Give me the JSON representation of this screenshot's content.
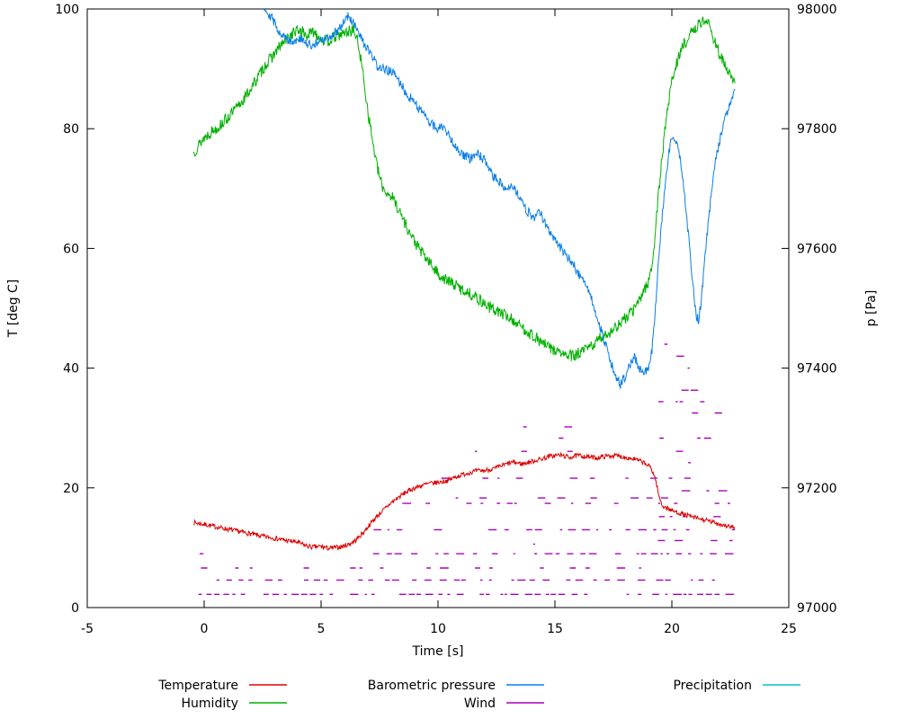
{
  "chart_data": {
    "type": "line",
    "title": "",
    "xlabel": "Time [s]",
    "ylabel_left": "T [deg C]",
    "ylabel_right": "p [Pa]",
    "xlim": [
      -5,
      25
    ],
    "xticks": [
      -5,
      0,
      5,
      10,
      15,
      20,
      25
    ],
    "ylim_left": [
      0,
      100
    ],
    "yticks_left": [
      0,
      20,
      40,
      60,
      80,
      100
    ],
    "ylim_right": [
      97000,
      98000
    ],
    "yticks_right": [
      97000,
      97200,
      97400,
      97600,
      97800,
      98000
    ],
    "grid": false,
    "legend_position": "bottom",
    "axis_color": "#000000",
    "series": [
      {
        "name": "Temperature",
        "axis": "left",
        "color": "#dd0000",
        "style": "noisy-line",
        "noise": 0.4,
        "points": [
          [
            -0.45,
            14.2
          ],
          [
            0,
            13.9
          ],
          [
            0.5,
            13.5
          ],
          [
            1,
            13.1
          ],
          [
            1.5,
            12.7
          ],
          [
            2,
            12.3
          ],
          [
            2.5,
            11.9
          ],
          [
            3,
            11.6
          ],
          [
            3.5,
            11.2
          ],
          [
            4,
            10.9
          ],
          [
            4.3,
            10.4
          ],
          [
            4.6,
            10.1
          ],
          [
            5,
            10.2
          ],
          [
            5.3,
            9.9
          ],
          [
            5.6,
            10
          ],
          [
            5.9,
            10.2
          ],
          [
            6.2,
            10.6
          ],
          [
            6.5,
            11.3
          ],
          [
            6.8,
            12.5
          ],
          [
            7.1,
            14
          ],
          [
            7.4,
            15.3
          ],
          [
            7.7,
            16.4
          ],
          [
            8,
            17.5
          ],
          [
            8.3,
            18.4
          ],
          [
            8.6,
            19.2
          ],
          [
            9,
            20
          ],
          [
            9.3,
            20.4
          ],
          [
            9.6,
            20.7
          ],
          [
            10,
            20.9
          ],
          [
            10.4,
            21.2
          ],
          [
            10.8,
            21.9
          ],
          [
            11.2,
            22.4
          ],
          [
            11.6,
            22.8
          ],
          [
            12,
            22.9
          ],
          [
            12.4,
            23.2
          ],
          [
            12.8,
            23.8
          ],
          [
            13.2,
            24.3
          ],
          [
            13.6,
            24
          ],
          [
            14,
            24.4
          ],
          [
            14.4,
            24.8
          ],
          [
            14.8,
            25.3
          ],
          [
            15.2,
            25.5
          ],
          [
            15.6,
            25.1
          ],
          [
            16,
            25.4
          ],
          [
            16.4,
            25.2
          ],
          [
            16.8,
            25
          ],
          [
            17.2,
            25.3
          ],
          [
            17.6,
            25.4
          ],
          [
            18,
            25.1
          ],
          [
            18.4,
            24.8
          ],
          [
            18.8,
            24.2
          ],
          [
            19.1,
            23.4
          ],
          [
            19.3,
            21.5
          ],
          [
            19.45,
            18.5
          ],
          [
            19.6,
            17
          ],
          [
            19.8,
            16.6
          ],
          [
            20,
            16.2
          ],
          [
            20.4,
            15.7
          ],
          [
            20.8,
            15.2
          ],
          [
            21.2,
            14.8
          ],
          [
            21.6,
            14.4
          ],
          [
            22,
            14
          ],
          [
            22.4,
            13.6
          ],
          [
            22.7,
            13.3
          ]
        ]
      },
      {
        "name": "Humidity",
        "axis": "left",
        "color": "#00b000",
        "style": "noisy-line",
        "noise": 1.0,
        "points": [
          [
            -0.45,
            76
          ],
          [
            -0.2,
            77.5
          ],
          [
            0,
            78.5
          ],
          [
            0.3,
            79.5
          ],
          [
            0.6,
            80.3
          ],
          [
            1,
            81.8
          ],
          [
            1.4,
            83.5
          ],
          [
            1.8,
            85.5
          ],
          [
            2.2,
            88
          ],
          [
            2.6,
            90.5
          ],
          [
            3,
            92.5
          ],
          [
            3.4,
            94.5
          ],
          [
            3.8,
            96
          ],
          [
            4.1,
            96.5
          ],
          [
            4.4,
            95.5
          ],
          [
            4.7,
            96.3
          ],
          [
            5,
            95
          ],
          [
            5.3,
            94.6
          ],
          [
            5.6,
            95.4
          ],
          [
            5.9,
            95.8
          ],
          [
            6.2,
            96.3
          ],
          [
            6.4,
            96.5
          ],
          [
            6.6,
            94
          ],
          [
            6.8,
            89
          ],
          [
            7,
            83
          ],
          [
            7.2,
            78
          ],
          [
            7.4,
            73.5
          ],
          [
            7.6,
            70.5
          ],
          [
            7.8,
            69.3
          ],
          [
            8,
            68.8
          ],
          [
            8.2,
            67.5
          ],
          [
            8.5,
            65
          ],
          [
            8.8,
            62.5
          ],
          [
            9.1,
            60.5
          ],
          [
            9.4,
            58.8
          ],
          [
            9.7,
            57.3
          ],
          [
            10,
            55.8
          ],
          [
            10.3,
            54.8
          ],
          [
            10.6,
            54.2
          ],
          [
            11,
            53.2
          ],
          [
            11.4,
            52.4
          ],
          [
            11.8,
            51.3
          ],
          [
            12.2,
            50.2
          ],
          [
            12.6,
            49.4
          ],
          [
            13,
            48.6
          ],
          [
            13.4,
            47.4
          ],
          [
            13.8,
            46.2
          ],
          [
            14.2,
            45
          ],
          [
            14.6,
            43.8
          ],
          [
            15,
            43
          ],
          [
            15.4,
            42.2
          ],
          [
            15.8,
            42
          ],
          [
            16.2,
            42.8
          ],
          [
            16.6,
            43.8
          ],
          [
            17,
            45.2
          ],
          [
            17.4,
            46.2
          ],
          [
            17.8,
            47.5
          ],
          [
            18.2,
            49
          ],
          [
            18.5,
            50.5
          ],
          [
            18.8,
            53
          ],
          [
            19,
            54.5
          ],
          [
            19.15,
            57
          ],
          [
            19.3,
            63
          ],
          [
            19.45,
            70
          ],
          [
            19.6,
            76
          ],
          [
            19.8,
            83
          ],
          [
            20,
            88
          ],
          [
            20.2,
            91
          ],
          [
            20.5,
            94
          ],
          [
            20.8,
            95.8
          ],
          [
            21.1,
            97.2
          ],
          [
            21.4,
            98.3
          ],
          [
            21.6,
            97.2
          ],
          [
            21.8,
            95
          ],
          [
            22,
            93
          ],
          [
            22.2,
            91
          ],
          [
            22.4,
            89.5
          ],
          [
            22.6,
            88.2
          ],
          [
            22.7,
            87.6
          ]
        ]
      },
      {
        "name": "Barometric pressure",
        "axis": "right",
        "color": "#0a7ee8",
        "style": "noisy-line",
        "noise": 8,
        "points": [
          [
            2.55,
            98005
          ],
          [
            2.7,
            97995
          ],
          [
            2.9,
            97985
          ],
          [
            3.1,
            97970
          ],
          [
            3.3,
            97958
          ],
          [
            3.5,
            97950
          ],
          [
            3.8,
            97946
          ],
          [
            4.1,
            97950
          ],
          [
            4.4,
            97941
          ],
          [
            4.7,
            97940
          ],
          [
            5,
            97946
          ],
          [
            5.3,
            97951
          ],
          [
            5.6,
            97960
          ],
          [
            5.9,
            97974
          ],
          [
            6.1,
            97988
          ],
          [
            6.3,
            97982
          ],
          [
            6.5,
            97966
          ],
          [
            6.8,
            97944
          ],
          [
            7.1,
            97925
          ],
          [
            7.4,
            97905
          ],
          [
            7.7,
            97898
          ],
          [
            8,
            97896
          ],
          [
            8.2,
            97888
          ],
          [
            8.5,
            97868
          ],
          [
            8.8,
            97852
          ],
          [
            9.1,
            97840
          ],
          [
            9.4,
            97822
          ],
          [
            9.7,
            97808
          ],
          [
            10,
            97800
          ],
          [
            10.2,
            97804
          ],
          [
            10.5,
            97788
          ],
          [
            10.8,
            97768
          ],
          [
            11.1,
            97754
          ],
          [
            11.4,
            97750
          ],
          [
            11.7,
            97758
          ],
          [
            12,
            97746
          ],
          [
            12.3,
            97722
          ],
          [
            12.6,
            97712
          ],
          [
            12.9,
            97702
          ],
          [
            13.2,
            97706
          ],
          [
            13.5,
            97682
          ],
          [
            13.8,
            97662
          ],
          [
            14.1,
            97652
          ],
          [
            14.35,
            97660
          ],
          [
            14.6,
            97642
          ],
          [
            14.9,
            97620
          ],
          [
            15.2,
            97604
          ],
          [
            15.5,
            97588
          ],
          [
            15.8,
            97572
          ],
          [
            16.1,
            97552
          ],
          [
            16.4,
            97536
          ],
          [
            16.7,
            97498
          ],
          [
            17,
            97462
          ],
          [
            17.3,
            97420
          ],
          [
            17.6,
            97386
          ],
          [
            17.8,
            97372
          ],
          [
            18,
            97386
          ],
          [
            18.2,
            97404
          ],
          [
            18.4,
            97418
          ],
          [
            18.6,
            97400
          ],
          [
            18.8,
            97390
          ],
          [
            19,
            97402
          ],
          [
            19.15,
            97430
          ],
          [
            19.3,
            97500
          ],
          [
            19.45,
            97590
          ],
          [
            19.6,
            97660
          ],
          [
            19.75,
            97720
          ],
          [
            19.9,
            97768
          ],
          [
            20.05,
            97788
          ],
          [
            20.2,
            97775
          ],
          [
            20.35,
            97750
          ],
          [
            20.5,
            97706
          ],
          [
            20.65,
            97648
          ],
          [
            20.8,
            97580
          ],
          [
            20.95,
            97520
          ],
          [
            21.05,
            97485
          ],
          [
            21.15,
            97480
          ],
          [
            21.3,
            97530
          ],
          [
            21.45,
            97600
          ],
          [
            21.6,
            97660
          ],
          [
            21.75,
            97712
          ],
          [
            21.9,
            97752
          ],
          [
            22.05,
            97782
          ],
          [
            22.2,
            97806
          ],
          [
            22.35,
            97826
          ],
          [
            22.5,
            97846
          ],
          [
            22.65,
            97862
          ],
          [
            22.7,
            97866
          ]
        ]
      },
      {
        "name": "Wind",
        "axis": "left",
        "color": "#aa00bb",
        "style": "dash-scatter",
        "bands": [
          {
            "v": 2.2,
            "t0": -0.3,
            "t1": 22.7,
            "p": 0.85
          },
          {
            "v": 4.6,
            "t0": -0.3,
            "t1": 22.7,
            "p": 0.72
          },
          {
            "v": 6.6,
            "t0": -0.2,
            "t1": 22.7,
            "p": 0.5
          },
          {
            "v": 9.0,
            "t0": -0.2,
            "t1": 7.2,
            "p": 0.28
          },
          {
            "v": 9.0,
            "t0": 7.2,
            "t1": 22.7,
            "p": 0.78
          },
          {
            "v": 10.6,
            "t0": 0.5,
            "t1": 19.0,
            "p": 0.08
          },
          {
            "v": 13.0,
            "t0": 1.5,
            "t1": 7.2,
            "p": 0.06
          },
          {
            "v": 13.0,
            "t0": 7.2,
            "t1": 22.7,
            "p": 0.72
          },
          {
            "v": 15.2,
            "t0": 9.0,
            "t1": 22.7,
            "p": 0.12
          },
          {
            "v": 17.4,
            "t0": 7.8,
            "t1": 22.7,
            "p": 0.58
          },
          {
            "v": 18.3,
            "t0": 9.2,
            "t1": 22.7,
            "p": 0.28
          },
          {
            "v": 21.6,
            "t0": 9.6,
            "t1": 22.7,
            "p": 0.48
          },
          {
            "v": 22.5,
            "t0": 11.0,
            "t1": 22.3,
            "p": 0.1
          },
          {
            "v": 26.1,
            "t0": 11.5,
            "t1": 22.5,
            "p": 0.2
          },
          {
            "v": 28.3,
            "t0": 11.0,
            "t1": 19.0,
            "p": 0.05
          },
          {
            "v": 30.2,
            "t0": 10.5,
            "t1": 22.5,
            "p": 0.09
          },
          {
            "v": 11.2,
            "t0": 19.4,
            "t1": 22.6,
            "p": 0.55
          },
          {
            "v": 15.2,
            "t0": 19.4,
            "t1": 22.6,
            "p": 0.55
          },
          {
            "v": 19.5,
            "t0": 19.4,
            "t1": 22.6,
            "p": 0.55
          },
          {
            "v": 24.2,
            "t0": 19.4,
            "t1": 22.6,
            "p": 0.5
          },
          {
            "v": 28.3,
            "t0": 19.4,
            "t1": 22.6,
            "p": 0.5
          },
          {
            "v": 32.5,
            "t0": 19.4,
            "t1": 22.6,
            "p": 0.5
          },
          {
            "v": 34.4,
            "t0": 19.4,
            "t1": 22.6,
            "p": 0.45
          },
          {
            "v": 36.3,
            "t0": 19.4,
            "t1": 22.6,
            "p": 0.45
          },
          {
            "v": 38.1,
            "t0": 19.4,
            "t1": 22.6,
            "p": 0.4
          },
          {
            "v": 40.0,
            "t0": 19.4,
            "t1": 22.6,
            "p": 0.38
          },
          {
            "v": 42.0,
            "t0": 19.5,
            "t1": 22.6,
            "p": 0.32
          },
          {
            "v": 44.0,
            "t0": 19.6,
            "t1": 22.5,
            "p": 0.26
          },
          {
            "v": 45.8,
            "t0": 20.4,
            "t1": 22.3,
            "p": 0.15
          }
        ]
      },
      {
        "name": "Precipitation",
        "axis": "left",
        "color": "#00c0c8",
        "style": "noisy-line",
        "noise": 0,
        "points": []
      }
    ],
    "legend": {
      "rows": 2,
      "items": [
        {
          "label": "Temperature",
          "color": "#dd0000"
        },
        {
          "label": "Humidity",
          "color": "#00b000"
        },
        {
          "label": "Barometric pressure",
          "color": "#0a7ee8"
        },
        {
          "label": "Wind",
          "color": "#aa00bb"
        },
        {
          "label": "Precipitation",
          "color": "#00c0c8"
        }
      ]
    }
  }
}
